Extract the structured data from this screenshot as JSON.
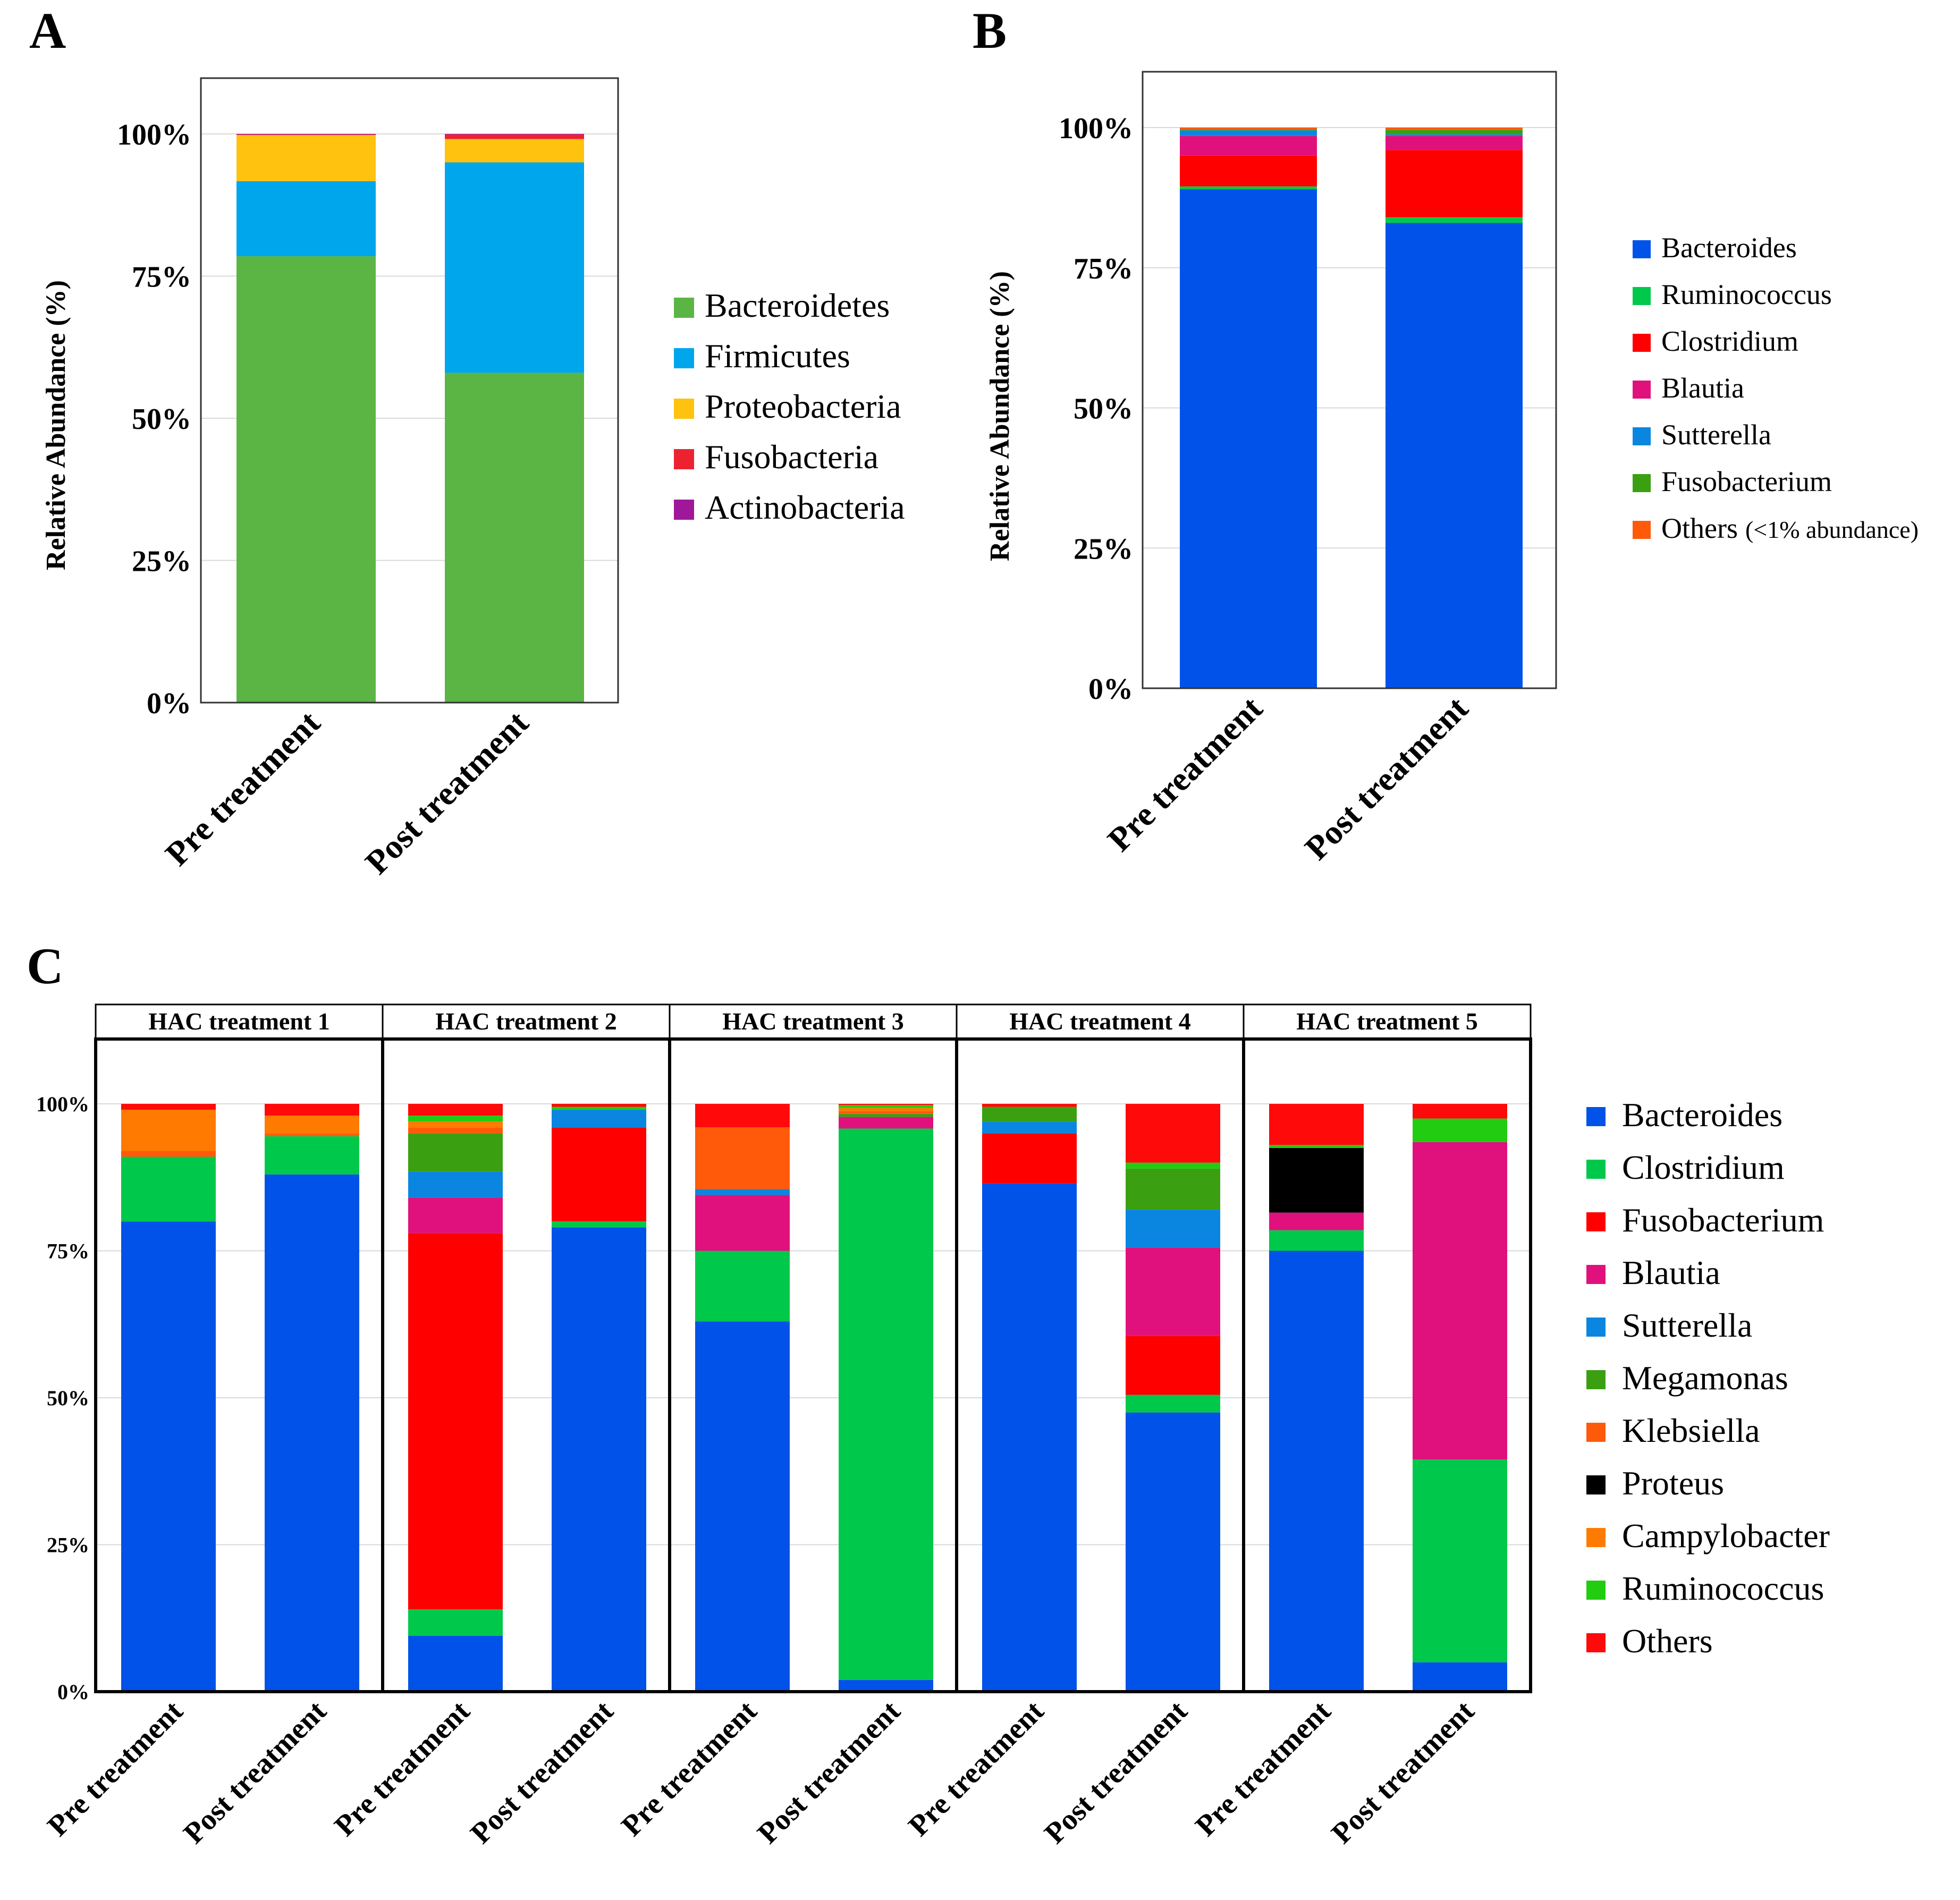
{
  "panels": {
    "A": {
      "letter": "A"
    },
    "B": {
      "letter": "B"
    },
    "C": {
      "letter": "C"
    }
  },
  "chart_data": [
    {
      "id": "A",
      "type": "bar",
      "stacked": true,
      "title": "",
      "xlabel": "",
      "ylabel": "Relative Abundance (%)",
      "ylim": [
        0,
        110
      ],
      "yticks": [
        "0%",
        "25%",
        "50%",
        "75%",
        "100%"
      ],
      "ytick_values": [
        0,
        25,
        50,
        75,
        100
      ],
      "grid": true,
      "legend_position": "right",
      "categories": [
        "Pre treatment",
        "Post treatment"
      ],
      "series": [
        {
          "name": "Bacteroidetes",
          "color": "#5bb544",
          "values": [
            78.5,
            58
          ]
        },
        {
          "name": "Firmicutes",
          "color": "#00a6ec",
          "values": [
            13.2,
            37
          ]
        },
        {
          "name": "Proteobacteria",
          "color": "#ffc20e",
          "values": [
            8.1,
            4.1
          ]
        },
        {
          "name": "Fusobacteria",
          "color": "#ed2230",
          "values": [
            0.1,
            0.8
          ]
        },
        {
          "name": "Actinobacteria",
          "color": "#a0189a",
          "values": [
            0.1,
            0.1
          ]
        }
      ]
    },
    {
      "id": "B",
      "type": "bar",
      "stacked": true,
      "title": "",
      "xlabel": "",
      "ylabel": "Relative Abundance (%)",
      "ylim": [
        0,
        110
      ],
      "yticks": [
        "0%",
        "25%",
        "50%",
        "75%",
        "100%"
      ],
      "ytick_values": [
        0,
        25,
        50,
        75,
        100
      ],
      "grid": true,
      "legend_position": "right",
      "categories": [
        "Pre treatment",
        "Post treatment"
      ],
      "series": [
        {
          "name": "Bacteroides",
          "color": "#0052e8",
          "values": [
            89,
            83
          ]
        },
        {
          "name": "Ruminococcus",
          "color": "#00c84a",
          "values": [
            0.5,
            1
          ]
        },
        {
          "name": "Clostridium",
          "color": "#ff0000",
          "values": [
            5.5,
            12
          ]
        },
        {
          "name": "Blautia",
          "color": "#e0117c",
          "values": [
            3.5,
            2.5
          ]
        },
        {
          "name": "Sutterella",
          "color": "#0a86e0",
          "values": [
            1,
            0.3
          ]
        },
        {
          "name": "Fusobacterium",
          "color": "#3aa011",
          "values": [
            0.2,
            0.8
          ]
        },
        {
          "name": "Others",
          "legend_suffix": "(<1% abundance)",
          "color": "#ff5a0a",
          "values": [
            0.3,
            0.4
          ]
        }
      ]
    },
    {
      "id": "C",
      "type": "bar",
      "stacked": true,
      "faceted": true,
      "title": "",
      "xlabel": "",
      "ylabel": "",
      "ylim": [
        0,
        110
      ],
      "yticks": [
        "0%",
        "25%",
        "50%",
        "75%",
        "100%"
      ],
      "ytick_values": [
        0,
        25,
        50,
        75,
        100
      ],
      "grid": true,
      "legend_position": "right",
      "series_meta": [
        {
          "name": "Bacteroides",
          "color": "#0052e8"
        },
        {
          "name": "Clostridium",
          "color": "#00c84a"
        },
        {
          "name": "Fusobacterium",
          "color": "#ff0000"
        },
        {
          "name": "Blautia",
          "color": "#e0117c"
        },
        {
          "name": "Sutterella",
          "color": "#0a86e0"
        },
        {
          "name": "Megamonas",
          "color": "#3aa011"
        },
        {
          "name": "Klebsiella",
          "color": "#ff5a0a"
        },
        {
          "name": "Proteus",
          "color": "#000000"
        },
        {
          "name": "Campylobacter",
          "color": "#ff7a00"
        },
        {
          "name": "Ruminococcus",
          "color": "#22cc11"
        },
        {
          "name": "Others",
          "color": "#ff0a0a"
        }
      ],
      "facets": [
        {
          "title": "HAC treatment 1",
          "categories": [
            "Pre treatment",
            "Post treatment"
          ],
          "values": [
            [
              80,
              11,
              0,
              0,
              0,
              0,
              1,
              0,
              7,
              0,
              1
            ],
            [
              88,
              6.5,
              0,
              0,
              0,
              0,
              0.5,
              0,
              3,
              0,
              2
            ]
          ]
        },
        {
          "title": "HAC treatment 2",
          "categories": [
            "Pre treatment",
            "Post treatment"
          ],
          "values": [
            [
              9.5,
              4.5,
              64,
              6,
              4.5,
              6.5,
              1,
              0,
              1,
              1,
              2
            ],
            [
              79,
              1,
              16,
              0,
              3,
              0,
              0,
              0,
              0,
              0.5,
              0.5
            ]
          ]
        },
        {
          "title": "HAC treatment 3",
          "categories": [
            "Pre treatment",
            "Post treatment"
          ],
          "values": [
            [
              63,
              12,
              0,
              9.5,
              1,
              0,
              10.5,
              0,
              0,
              0,
              4
            ],
            [
              2,
              93.8,
              0,
              2,
              0,
              0.5,
              0.5,
              0,
              0.5,
              0.5,
              0.2
            ]
          ]
        },
        {
          "title": "HAC treatment 4",
          "categories": [
            "Pre treatment",
            "Post treatment"
          ],
          "values": [
            [
              86.5,
              0,
              8.5,
              0,
              2,
              2.5,
              0,
              0,
              0,
              0,
              0.5
            ],
            [
              47.5,
              3,
              10,
              15,
              6.5,
              7,
              0,
              0,
              0,
              1,
              10
            ]
          ]
        },
        {
          "title": "HAC treatment 5",
          "categories": [
            "Pre treatment",
            "Post treatment"
          ],
          "values": [
            [
              75,
              3.5,
              0,
              3,
              0,
              0,
              0,
              11,
              0,
              0.5,
              7
            ],
            [
              5,
              34.5,
              0,
              54,
              0,
              0,
              0,
              0,
              0,
              4,
              2.5
            ]
          ]
        }
      ]
    }
  ]
}
